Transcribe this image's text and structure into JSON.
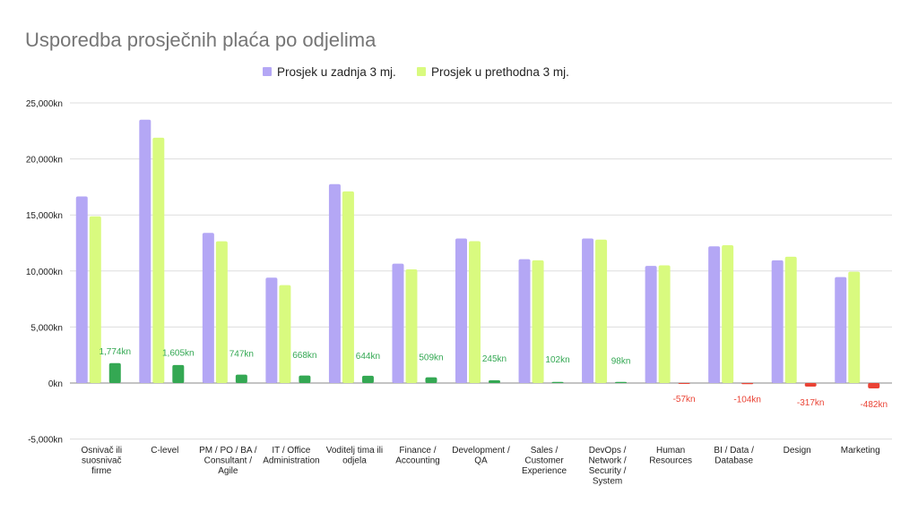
{
  "chart_data": {
    "type": "bar",
    "title": "Usporedba prosječnih plaća po odjelima",
    "legend_position": "top",
    "grid": true,
    "ylim": [
      -5000,
      25000
    ],
    "y_ticks": [
      -5000,
      0,
      5000,
      10000,
      15000,
      20000,
      25000
    ],
    "y_tick_labels": [
      "-5,000kn",
      "0kn",
      "5,000kn",
      "10,000kn",
      "15,000kn",
      "20,000kn",
      "25,000kn"
    ],
    "categories": [
      [
        "Osnivač ili",
        "suosnivač",
        "firme"
      ],
      [
        "C-level"
      ],
      [
        "PM / PO / BA /",
        "Consultant /",
        "Agile"
      ],
      [
        "IT / Office",
        "Administration"
      ],
      [
        "Voditelj tima ili",
        "odjela"
      ],
      [
        "Finance /",
        "Accounting"
      ],
      [
        "Development /",
        "QA"
      ],
      [
        "Sales /",
        "Customer",
        "Experience"
      ],
      [
        "DevOps /",
        "Network /",
        "Security /",
        "System"
      ],
      [
        "Human",
        "Resources"
      ],
      [
        "BI / Data /",
        "Database"
      ],
      [
        "Design"
      ],
      [
        "Marketing"
      ]
    ],
    "series": [
      {
        "name": "Prosjek u zadnja 3 mj.",
        "color": "#b4a7f5",
        "values": [
          16650,
          23500,
          13400,
          9400,
          17750,
          10650,
          12900,
          11050,
          12900,
          10450,
          12200,
          10950,
          9450
        ]
      },
      {
        "name": "Prosjek u prethodna 3 mj.",
        "color": "#d9fa7f",
        "values": [
          14876,
          21895,
          12653,
          8732,
          17106,
          10141,
          12655,
          10948,
          12802,
          10507,
          12304,
          11267,
          9932
        ]
      },
      {
        "color_positive": "#34a853",
        "color_negative": "#ea4335",
        "values": [
          1774,
          1605,
          747,
          668,
          644,
          509,
          245,
          102,
          98,
          -57,
          -104,
          -317,
          -482
        ],
        "labels": [
          "1,774kn",
          "1,605kn",
          "747kn",
          "668kn",
          "644kn",
          "509kn",
          "245kn",
          "102kn",
          "98kn",
          "-57kn",
          "-104kn",
          "-317kn",
          "-482kn"
        ]
      }
    ]
  }
}
